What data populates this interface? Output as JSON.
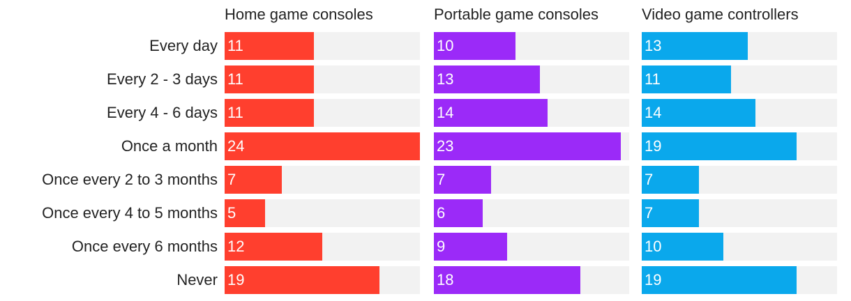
{
  "chart_data": {
    "type": "bar",
    "orientation": "horizontal",
    "categories": [
      "Every day",
      "Every 2 - 3 days",
      "Every 4 - 6 days",
      "Once a month",
      "Once every 2 to 3 months",
      "Once every 4 to 5 months",
      "Once every 6 months",
      "Never"
    ],
    "series": [
      {
        "name": "Home game consoles",
        "color": "#ff3f2e",
        "values": [
          11,
          11,
          11,
          24,
          7,
          5,
          12,
          19
        ]
      },
      {
        "name": "Portable game consoles",
        "color": "#9b2af8",
        "values": [
          10,
          13,
          14,
          23,
          7,
          6,
          9,
          18
        ]
      },
      {
        "name": "Video game controllers",
        "color": "#0aa8ec",
        "values": [
          13,
          11,
          14,
          19,
          7,
          7,
          10,
          19
        ]
      }
    ],
    "xlim": [
      0,
      24
    ],
    "grid": false,
    "track_color": "#f2f2f2"
  }
}
